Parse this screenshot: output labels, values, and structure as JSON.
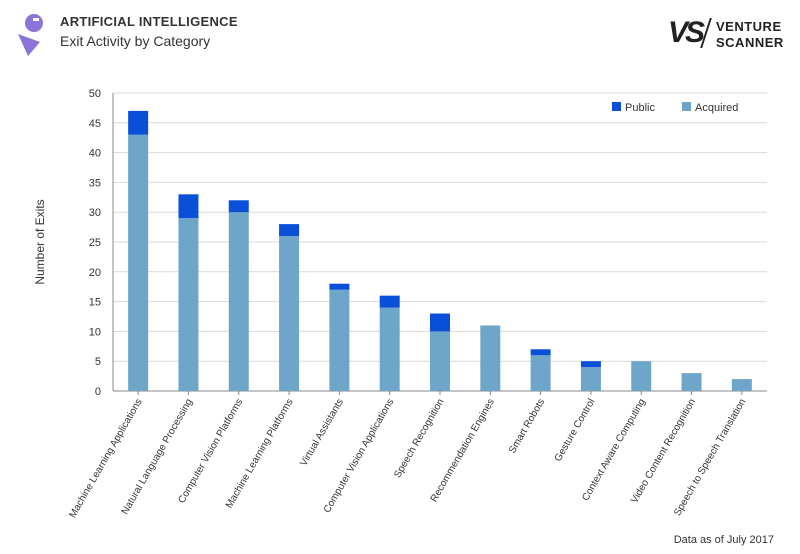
{
  "header": {
    "section": "ARTIFICIAL INTELLIGENCE",
    "subtitle": "Exit Activity by Category",
    "brand_line1": "VENTURE",
    "brand_line2": "SCANNER",
    "brand_mark": "VS"
  },
  "footer": {
    "note": "Data as of July 2017"
  },
  "colors": {
    "public": "#0a4fd8",
    "acquired": "#6ea6c9",
    "grid": "#d9d9d9",
    "logo": "#8a74d8"
  },
  "chart_data": {
    "type": "bar",
    "stacked": true,
    "title": "Exit Activity by Category",
    "xlabel": "",
    "ylabel": "Number of Exits",
    "ylim": [
      0,
      50
    ],
    "yticks": [
      0,
      5,
      10,
      15,
      20,
      25,
      30,
      35,
      40,
      45,
      50
    ],
    "grid": true,
    "legend_position": "top-right",
    "categories": [
      "Machine Learning Applications",
      "Natural Language Processing",
      "Computer Vision Platforms",
      "Machine Learning Platforms",
      "Virtual Assistants",
      "Computer Vision Applications",
      "Speech Recognition",
      "Recommendation Engines",
      "Smart Robots",
      "Gesture Control",
      "Context Aware Computing",
      "Video Content Recognition",
      "Speech to Speech Translation"
    ],
    "series": [
      {
        "name": "Acquired",
        "values": [
          43,
          29,
          30,
          26,
          17,
          14,
          10,
          11,
          6,
          4,
          5,
          3,
          2
        ]
      },
      {
        "name": "Public",
        "values": [
          4,
          4,
          2,
          2,
          1,
          2,
          3,
          0,
          1,
          1,
          0,
          0,
          0
        ]
      }
    ],
    "legend": [
      "Public",
      "Acquired"
    ]
  }
}
